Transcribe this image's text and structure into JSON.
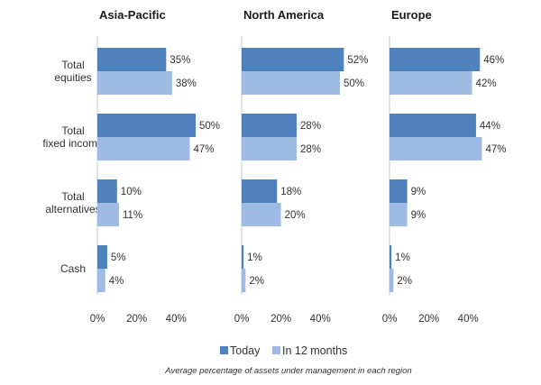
{
  "chart_data": {
    "type": "bar",
    "orientation": "horizontal",
    "categories": [
      [
        "Total",
        "equities"
      ],
      [
        "Total",
        "fixed income"
      ],
      [
        "Total",
        "alternatives"
      ],
      [
        "Cash"
      ]
    ],
    "series_names": [
      "Today",
      "In 12 months"
    ],
    "colors": {
      "Today": "#4f81bd",
      "In 12 months": "#9dbbe3"
    },
    "xlim": [
      0,
      55
    ],
    "x_ticks": [
      0,
      20,
      40
    ],
    "tick_format": "%",
    "panels": [
      {
        "title": "Asia-Pacific",
        "series": [
          {
            "name": "Today",
            "values": [
              35,
              50,
              10,
              5
            ]
          },
          {
            "name": "In 12 months",
            "values": [
              38,
              47,
              11,
              4
            ]
          }
        ]
      },
      {
        "title": "North America",
        "series": [
          {
            "name": "Today",
            "values": [
              52,
              28,
              18,
              1
            ]
          },
          {
            "name": "In 12 months",
            "values": [
              50,
              28,
              20,
              2
            ]
          }
        ]
      },
      {
        "title": "Europe",
        "series": [
          {
            "name": "Today",
            "values": [
              46,
              44,
              9,
              1
            ]
          },
          {
            "name": "In 12 months",
            "values": [
              42,
              47,
              9,
              2
            ]
          }
        ]
      }
    ],
    "legend": {
      "position": "bottom",
      "entries": [
        "Today",
        "In 12 months"
      ]
    },
    "caption": "Average percentage of assets under management in each region",
    "grid": false
  }
}
